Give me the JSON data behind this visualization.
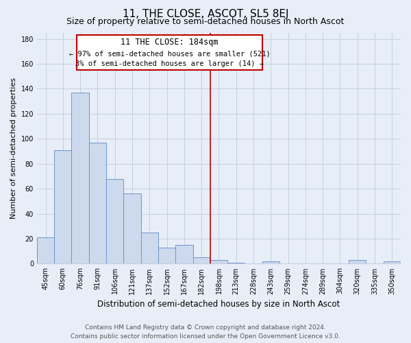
{
  "title": "11, THE CLOSE, ASCOT, SL5 8EJ",
  "subtitle": "Size of property relative to semi-detached houses in North Ascot",
  "xlabel": "Distribution of semi-detached houses by size in North Ascot",
  "ylabel": "Number of semi-detached properties",
  "categories": [
    "45sqm",
    "60sqm",
    "76sqm",
    "91sqm",
    "106sqm",
    "121sqm",
    "137sqm",
    "152sqm",
    "167sqm",
    "182sqm",
    "198sqm",
    "213sqm",
    "228sqm",
    "243sqm",
    "259sqm",
    "274sqm",
    "289sqm",
    "304sqm",
    "320sqm",
    "335sqm",
    "350sqm"
  ],
  "values": [
    21,
    91,
    137,
    97,
    68,
    56,
    25,
    13,
    15,
    5,
    3,
    1,
    0,
    2,
    0,
    0,
    0,
    0,
    3,
    0,
    2
  ],
  "bar_color": "#cdd9ed",
  "bar_edge_color": "#6b96cc",
  "marker_line_color": "#c00000",
  "annotation_line1": "11 THE CLOSE: 184sqm",
  "annotation_line2": "← 97% of semi-detached houses are smaller (521)",
  "annotation_line3": "3% of semi-detached houses are larger (14) →",
  "annotation_box_edge_color": "#c00000",
  "ylim": [
    0,
    185
  ],
  "yticks": [
    0,
    20,
    40,
    60,
    80,
    100,
    120,
    140,
    160,
    180
  ],
  "footer_line1": "Contains HM Land Registry data © Crown copyright and database right 2024.",
  "footer_line2": "Contains public sector information licensed under the Open Government Licence v3.0.",
  "background_color": "#e8eef8",
  "grid_color": "#c5cfe0",
  "title_fontsize": 11,
  "subtitle_fontsize": 9,
  "xlabel_fontsize": 8.5,
  "ylabel_fontsize": 8,
  "tick_fontsize": 7,
  "footer_fontsize": 6.5,
  "annotation_fontsize_title": 8.5,
  "annotation_fontsize_body": 7.5
}
